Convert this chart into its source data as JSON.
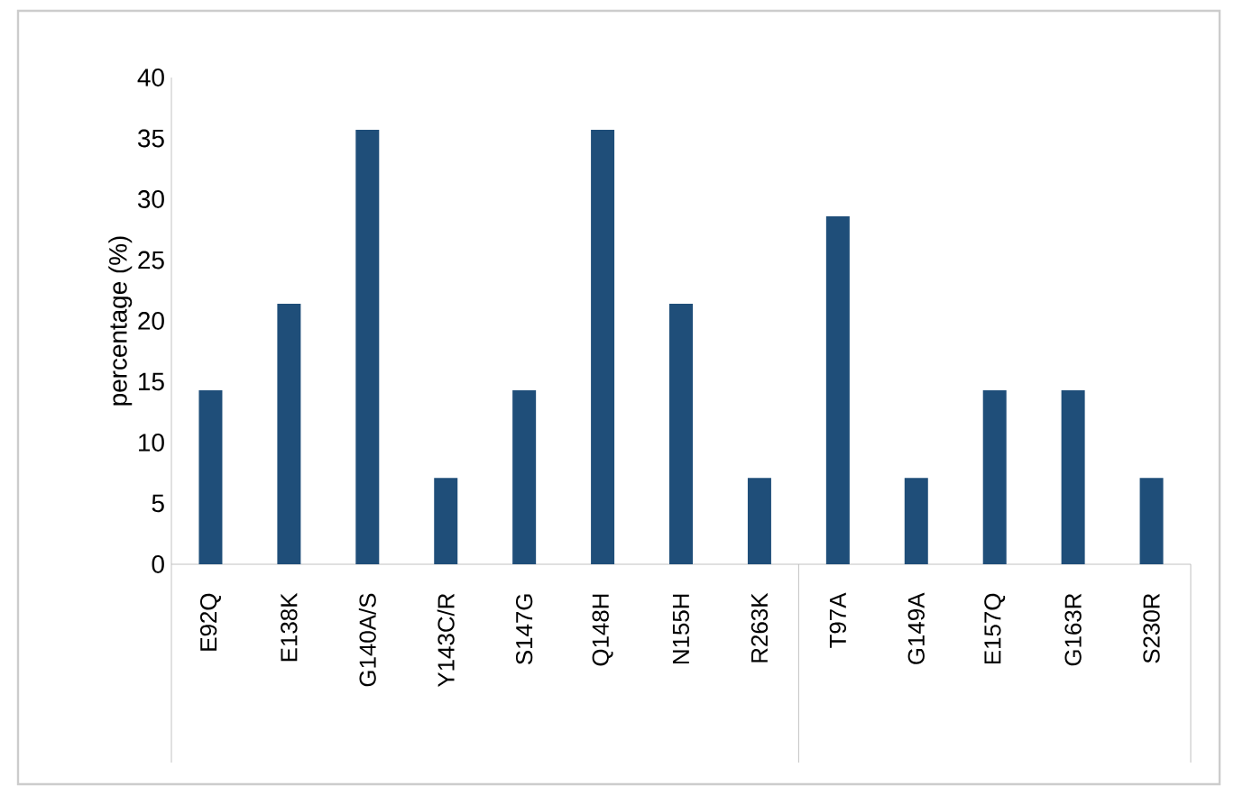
{
  "chart_data": {
    "type": "bar",
    "ylabel": "percentage (%)",
    "categories": [
      "E92Q",
      "E138K",
      "G140A/S",
      "Y143C/R",
      "S147G",
      "Q148H",
      "N155H",
      "R263K",
      "T97A",
      "G149A",
      "E157Q",
      "G163R",
      "S230R"
    ],
    "values": [
      14.3,
      21.4,
      35.7,
      7.1,
      14.3,
      35.7,
      21.4,
      7.1,
      28.6,
      7.1,
      14.3,
      14.3,
      7.1
    ],
    "color": "#1f4e79",
    "ylim": [
      0,
      40
    ],
    "yticks": [
      0,
      5,
      10,
      15,
      20,
      25,
      30,
      35,
      40
    ],
    "grid": false
  }
}
